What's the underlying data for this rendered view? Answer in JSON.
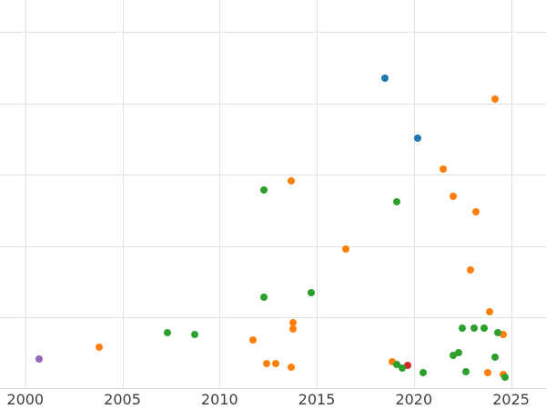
{
  "chart_data": {
    "type": "scatter",
    "title": "",
    "xlabel": "",
    "ylabel": "",
    "grid": true,
    "legend": false,
    "xlim": [
      1998.7,
      2026.8
    ],
    "ylim": [
      0,
      5.45
    ],
    "x_ticks": [
      2000,
      2005,
      2010,
      2015,
      2020,
      2025
    ],
    "y_gridlines": [
      1,
      2,
      3,
      4,
      5
    ],
    "series": [
      {
        "name": "purple",
        "color": "#9467bd",
        "points": [
          [
            2000.7,
            0.42
          ]
        ]
      },
      {
        "name": "blue",
        "color": "#1f77b4",
        "points": [
          [
            2018.5,
            4.36
          ],
          [
            2020.2,
            3.52
          ]
        ]
      },
      {
        "name": "red",
        "color": "#d62728",
        "points": [
          [
            2019.7,
            0.33
          ]
        ]
      },
      {
        "name": "orange",
        "color": "#ff7f0e",
        "points": [
          [
            2003.8,
            0.59
          ],
          [
            2011.7,
            0.69
          ],
          [
            2012.4,
            0.36
          ],
          [
            2012.9,
            0.36
          ],
          [
            2013.7,
            2.92
          ],
          [
            2013.8,
            0.93
          ],
          [
            2013.8,
            0.84
          ],
          [
            2013.7,
            0.31
          ],
          [
            2016.5,
            1.96
          ],
          [
            2018.9,
            0.38
          ],
          [
            2021.5,
            3.08
          ],
          [
            2022.0,
            2.7
          ],
          [
            2022.9,
            1.67
          ],
          [
            2023.2,
            2.48
          ],
          [
            2023.9,
            1.08
          ],
          [
            2024.2,
            4.06
          ],
          [
            2023.8,
            0.23
          ],
          [
            2024.6,
            0.76
          ],
          [
            2024.6,
            0.2
          ]
        ]
      },
      {
        "name": "green",
        "color": "#2ca02c",
        "points": [
          [
            2007.3,
            0.79
          ],
          [
            2008.7,
            0.76
          ],
          [
            2012.3,
            2.79
          ],
          [
            2012.3,
            1.29
          ],
          [
            2014.7,
            1.35
          ],
          [
            2019.1,
            2.62
          ],
          [
            2019.1,
            0.34
          ],
          [
            2019.4,
            0.29
          ],
          [
            2020.5,
            0.23
          ],
          [
            2022.0,
            0.47
          ],
          [
            2022.3,
            0.51
          ],
          [
            2022.5,
            0.85
          ],
          [
            2023.1,
            0.85
          ],
          [
            2023.6,
            0.85
          ],
          [
            2022.7,
            0.24
          ],
          [
            2024.3,
            0.79
          ],
          [
            2024.2,
            0.45
          ],
          [
            2024.7,
            0.17
          ]
        ]
      }
    ]
  }
}
